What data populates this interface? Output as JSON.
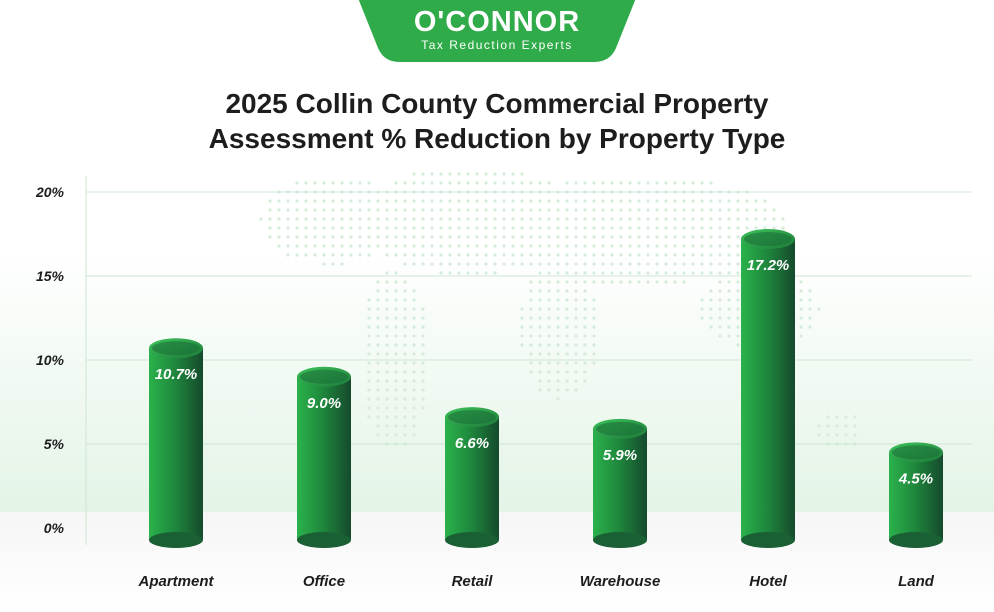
{
  "header": {
    "brand": "O'CONNOR",
    "tagline": "Tax Reduction Experts",
    "brand_color": "#2fab4a"
  },
  "chart_data": {
    "type": "bar",
    "title_line1": "2025 Collin County Commercial Property",
    "title_line2": "Assessment % Reduction by Property Type",
    "categories": [
      "Apartment",
      "Office",
      "Retail",
      "Warehouse",
      "Hotel",
      "Land"
    ],
    "values": [
      10.7,
      9.0,
      6.6,
      5.9,
      17.2,
      4.5
    ],
    "value_labels": [
      "10.7%",
      "9.0%",
      "6.6%",
      "5.9%",
      "17.2%",
      "4.5%"
    ],
    "y_ticks": [
      0,
      5,
      10,
      15,
      20
    ],
    "y_tick_labels": [
      "0%",
      "5%",
      "10%",
      "15%",
      "20%"
    ],
    "ylim": [
      0,
      20
    ],
    "grid": true,
    "bar_color": "#2bb24c",
    "bar_dark": "#154a2d"
  }
}
